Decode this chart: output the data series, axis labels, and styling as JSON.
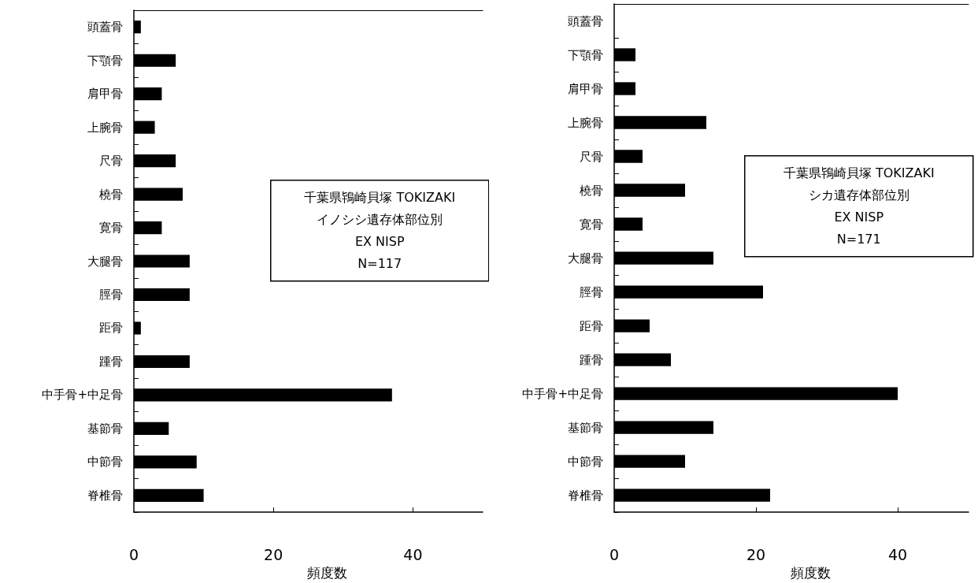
{
  "chart_data": [
    {
      "type": "bar",
      "orientation": "horizontal",
      "categories": [
        "頭蓋骨",
        "下顎骨",
        "肩甲骨",
        "上腕骨",
        "尺骨",
        "橈骨",
        "寛骨",
        "大腿骨",
        "脛骨",
        "距骨",
        "踵骨",
        "中手骨+中足骨",
        "基節骨",
        "中節骨",
        "脊椎骨"
      ],
      "values": [
        1,
        6,
        4,
        3,
        6,
        7,
        4,
        8,
        8,
        1,
        8,
        37,
        5,
        9,
        10
      ],
      "color": "#000000",
      "xlim": [
        0,
        50
      ],
      "xticks": [
        0,
        20,
        40
      ],
      "xlabel": "頻度数",
      "grid": false,
      "annotations": [
        "千葉県鴇崎貝塚 TOKIZAKI",
        "イノシシ遺存体部位別",
        "EX NISP",
        "N=117"
      ]
    },
    {
      "type": "bar",
      "orientation": "horizontal",
      "categories": [
        "頭蓋骨",
        "下顎骨",
        "肩甲骨",
        "上腕骨",
        "尺骨",
        "橈骨",
        "寛骨",
        "大腿骨",
        "脛骨",
        "距骨",
        "踵骨",
        "中手骨+中足骨",
        "基節骨",
        "中節骨",
        "脊椎骨"
      ],
      "values": [
        0,
        3,
        3,
        13,
        4,
        10,
        4,
        14,
        21,
        5,
        8,
        40,
        14,
        10,
        22
      ],
      "color": "#000000",
      "xlim": [
        0,
        50
      ],
      "xticks": [
        0,
        20,
        40
      ],
      "xlabel": "頻度数",
      "grid": false,
      "annotations": [
        "千葉県鴇崎貝塚 TOKIZAKI",
        "シカ遺存体部位別",
        "EX NISP",
        "N=171"
      ]
    }
  ]
}
